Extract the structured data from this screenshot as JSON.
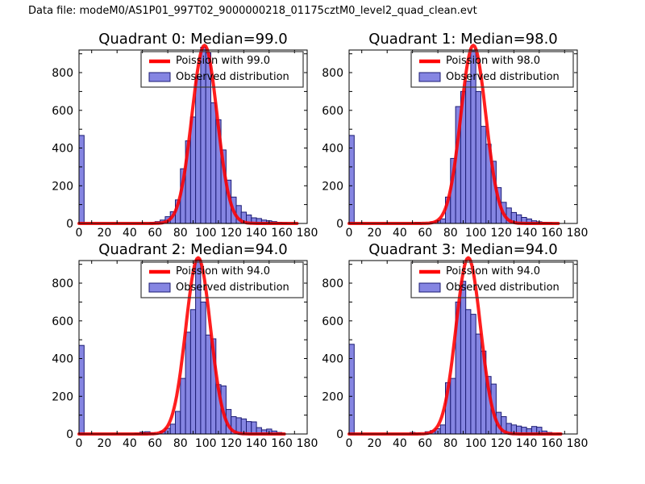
{
  "figure": {
    "title": "Data file: modeM0/AS1P01_997T02_9000000218_01175cztM0_level2_quad_clean.evt",
    "background": "#ffffff"
  },
  "style": {
    "bar_fill": "#8585e2",
    "bar_edge": "#1c1c74",
    "curve_color": "#ff0000",
    "axis_color": "#000000",
    "text_color": "#000000",
    "legend_border": "#3a3a3a"
  },
  "axes_config": {
    "xlim": [
      0,
      180
    ],
    "ylim": [
      0,
      920
    ],
    "xtick_mark_values": [
      10,
      30,
      50,
      70,
      90,
      110,
      130,
      150,
      170
    ],
    "xtick_label_values": [
      0,
      20,
      40,
      60,
      80,
      100,
      120,
      140,
      160,
      180
    ],
    "ytick_mark_values": [
      0,
      100,
      200,
      300,
      400,
      500,
      600,
      700,
      800,
      900
    ],
    "ytick_label_values": [
      0,
      200,
      400,
      600,
      800
    ],
    "bin_width": 4
  },
  "chart_data": [
    {
      "type": "histogram+line",
      "title": "Quadrant 0: Median=99.0",
      "median": 99.0,
      "legend": {
        "line_label": "Poission with 99.0",
        "patch_label": "Observed distribution"
      },
      "curve": {
        "mu": 99,
        "sigma": 9.95,
        "peak": 945,
        "xmax": 172
      },
      "bins": [
        [
          0,
          467
        ],
        [
          56,
          4
        ],
        [
          60,
          10
        ],
        [
          64,
          18
        ],
        [
          68,
          36
        ],
        [
          72,
          62
        ],
        [
          76,
          125
        ],
        [
          80,
          290
        ],
        [
          84,
          438
        ],
        [
          88,
          565
        ],
        [
          92,
          780
        ],
        [
          96,
          935
        ],
        [
          100,
          905
        ],
        [
          104,
          640
        ],
        [
          108,
          550
        ],
        [
          112,
          390
        ],
        [
          116,
          230
        ],
        [
          120,
          140
        ],
        [
          124,
          95
        ],
        [
          128,
          60
        ],
        [
          132,
          45
        ],
        [
          136,
          30
        ],
        [
          140,
          26
        ],
        [
          144,
          18
        ],
        [
          148,
          14
        ],
        [
          152,
          10
        ],
        [
          156,
          6
        ],
        [
          160,
          3
        ]
      ]
    },
    {
      "type": "histogram+line",
      "title": "Quadrant 1: Median=98.0",
      "median": 98.0,
      "legend": {
        "line_label": "Poission with 98.0",
        "patch_label": "Observed distribution"
      },
      "curve": {
        "mu": 98,
        "sigma": 9.9,
        "peak": 945,
        "xmax": 165
      },
      "bins": [
        [
          0,
          467
        ],
        [
          52,
          6
        ],
        [
          64,
          8
        ],
        [
          68,
          14
        ],
        [
          72,
          24
        ],
        [
          76,
          140
        ],
        [
          80,
          345
        ],
        [
          84,
          620
        ],
        [
          88,
          700
        ],
        [
          92,
          755
        ],
        [
          96,
          915
        ],
        [
          100,
          700
        ],
        [
          104,
          515
        ],
        [
          108,
          420
        ],
        [
          112,
          330
        ],
        [
          116,
          190
        ],
        [
          120,
          112
        ],
        [
          124,
          82
        ],
        [
          128,
          58
        ],
        [
          132,
          46
        ],
        [
          136,
          32
        ],
        [
          140,
          24
        ],
        [
          144,
          14
        ],
        [
          148,
          9
        ],
        [
          152,
          6
        ],
        [
          156,
          4
        ]
      ]
    },
    {
      "type": "histogram+line",
      "title": "Quadrant 2: Median=94.0",
      "median": 94.0,
      "legend": {
        "line_label": "Poission with 94.0",
        "patch_label": "Observed distribution"
      },
      "curve": {
        "mu": 94,
        "sigma": 9.7,
        "peak": 935,
        "xmax": 162
      },
      "bins": [
        [
          0,
          470
        ],
        [
          44,
          4
        ],
        [
          48,
          10
        ],
        [
          52,
          12
        ],
        [
          56,
          6
        ],
        [
          64,
          15
        ],
        [
          68,
          30
        ],
        [
          72,
          52
        ],
        [
          76,
          120
        ],
        [
          80,
          295
        ],
        [
          84,
          540
        ],
        [
          88,
          660
        ],
        [
          92,
          925
        ],
        [
          96,
          700
        ],
        [
          100,
          525
        ],
        [
          104,
          505
        ],
        [
          108,
          262
        ],
        [
          112,
          255
        ],
        [
          116,
          130
        ],
        [
          120,
          92
        ],
        [
          124,
          86
        ],
        [
          128,
          80
        ],
        [
          132,
          66
        ],
        [
          136,
          64
        ],
        [
          140,
          34
        ],
        [
          144,
          22
        ],
        [
          148,
          26
        ],
        [
          152,
          16
        ],
        [
          156,
          8
        ]
      ]
    },
    {
      "type": "histogram+line",
      "title": "Quadrant 3: Median=94.0",
      "median": 94.0,
      "legend": {
        "line_label": "Poission with 94.0",
        "patch_label": "Observed distribution"
      },
      "curve": {
        "mu": 94,
        "sigma": 9.7,
        "peak": 935,
        "xmax": 167
      },
      "bins": [
        [
          0,
          476
        ],
        [
          48,
          8
        ],
        [
          52,
          6
        ],
        [
          60,
          12
        ],
        [
          64,
          18
        ],
        [
          68,
          28
        ],
        [
          72,
          48
        ],
        [
          76,
          272
        ],
        [
          80,
          295
        ],
        [
          84,
          700
        ],
        [
          88,
          810
        ],
        [
          92,
          660
        ],
        [
          96,
          635
        ],
        [
          100,
          530
        ],
        [
          104,
          440
        ],
        [
          108,
          305
        ],
        [
          112,
          265
        ],
        [
          116,
          115
        ],
        [
          120,
          92
        ],
        [
          124,
          56
        ],
        [
          128,
          48
        ],
        [
          132,
          42
        ],
        [
          136,
          36
        ],
        [
          140,
          28
        ],
        [
          144,
          40
        ],
        [
          148,
          36
        ],
        [
          152,
          16
        ],
        [
          156,
          8
        ],
        [
          164,
          4
        ]
      ]
    }
  ]
}
